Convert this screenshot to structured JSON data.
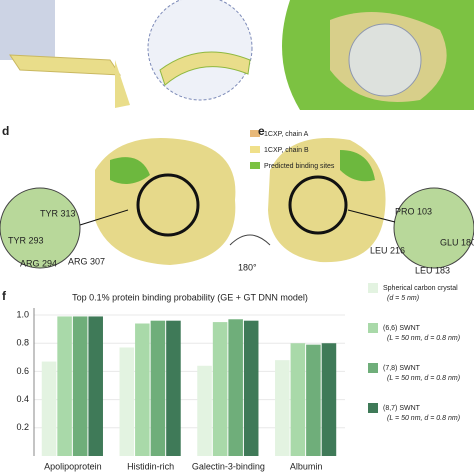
{
  "panels": {
    "d": "d",
    "e": "e",
    "f": "f"
  },
  "structure_legend": [
    "1CXP, chain A",
    "1CXP, chain B",
    "Predicted binding sites"
  ],
  "residues_d": [
    "TYR 313",
    "TYR 293",
    "ARG 294",
    "ARG 307"
  ],
  "residues_e": [
    "PRO 103",
    "GLU 180",
    "LEU 216",
    "LEU 183"
  ],
  "rotation": "180°",
  "chart_data": {
    "type": "bar",
    "title": "Top 0.1% protein binding probability (GE + GT DNN model)",
    "categories": [
      "Apolipoprotein",
      "Histidin-rich",
      "Galectin-3-binding",
      "Albumin"
    ],
    "series": [
      {
        "name": "Spherical carbon crystal",
        "note": "(d = 5 nm)",
        "color": "#e3f3e1",
        "values": [
          0.67,
          0.77,
          0.64,
          0.68
        ]
      },
      {
        "name": "(6,6) SWNT",
        "note": "(L = 50 nm, d = 0.8 nm)",
        "color": "#a9d9a9",
        "values": [
          0.99,
          0.94,
          0.95,
          0.8
        ]
      },
      {
        "name": "(7,8) SWNT",
        "note": "(L = 50 nm, d = 0.8 nm)",
        "color": "#6fae7a",
        "values": [
          0.99,
          0.96,
          0.97,
          0.79
        ]
      },
      {
        "name": "(8,7) SWNT",
        "note": "(L = 50 nm, d = 0.8 nm)",
        "color": "#3f7a58",
        "values": [
          0.99,
          0.96,
          0.96,
          0.8
        ]
      }
    ],
    "ylim": [
      0,
      1.05
    ],
    "yticks": [
      {
        "value": 0.2,
        "label": "0.2"
      },
      {
        "value": 0.4,
        "label": "0.4"
      },
      {
        "value": 0.6,
        "label": "0.6"
      },
      {
        "value": 0.8,
        "label": "0.8"
      },
      {
        "value": 1,
        "label": "1.0"
      }
    ],
    "grid": true
  }
}
